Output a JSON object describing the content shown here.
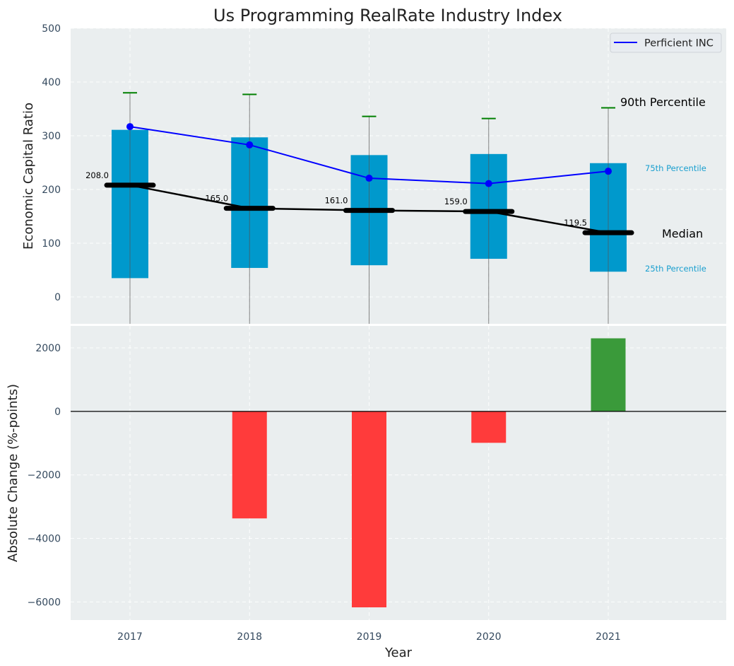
{
  "chart_data": [
    {
      "type": "box",
      "title": "Us Programming RealRate Industry Index",
      "xlabel": "",
      "ylabel": "Economic Capital Ratio",
      "ylim": [
        -50,
        500
      ],
      "yticks": [
        0,
        100,
        200,
        300,
        400,
        500
      ],
      "grid": true,
      "categories": [
        "2017",
        "2018",
        "2019",
        "2020",
        "2021"
      ],
      "percentile_boxes": {
        "p25": [
          35,
          54,
          59,
          71,
          47
        ],
        "p75": [
          311,
          297,
          264,
          266,
          249
        ],
        "p90": [
          380,
          377,
          336,
          332,
          352
        ],
        "whisker_low": [
          -50,
          -50,
          -50,
          -50,
          -50
        ],
        "color": "#0099cc"
      },
      "median": {
        "values": [
          208.0,
          165.0,
          161.0,
          159.0,
          119.5
        ],
        "labels": [
          "208.0",
          "165.0",
          "161.0",
          "159.0",
          "119.5"
        ],
        "color": "#000000"
      },
      "series": [
        {
          "name": "Perficient INC",
          "values": [
            317,
            283,
            221,
            211,
            234
          ],
          "color": "#0000ff"
        }
      ],
      "annotations": {
        "p90": "90th Percentile",
        "p75": "75th Percentile",
        "median": "Median",
        "p25": "25th Percentile"
      },
      "legend": {
        "position": "top-right",
        "entries": [
          "Perficient INC"
        ]
      },
      "p90_cap_color": "#008000"
    },
    {
      "type": "bar",
      "xlabel": "Year",
      "ylabel": "Absolute Change (%-points)",
      "ylim": [
        -6570,
        2690
      ],
      "yticks": [
        2000,
        0,
        -2000,
        -4000,
        -6000
      ],
      "ytick_labels": [
        "2000",
        "0",
        "−2000",
        "−4000",
        "−6000"
      ],
      "grid": true,
      "categories": [
        "2017",
        "2018",
        "2019",
        "2020",
        "2021"
      ],
      "values": [
        0,
        -3370,
        -6170,
        -990,
        2300
      ],
      "positive_color": "#3a9a3a",
      "negative_color": "#ff3b3b"
    }
  ]
}
